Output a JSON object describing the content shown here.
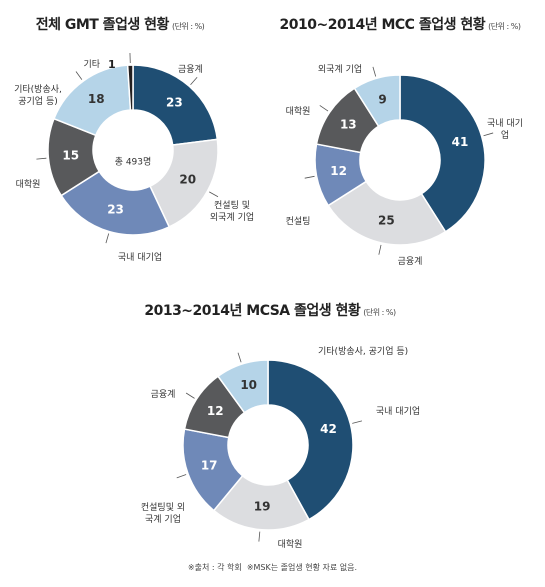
{
  "chart_data": [
    {
      "type": "donut",
      "title": "전체 GMT 졸업생 현황",
      "subtitle": "(단위 : %)",
      "center_label": "총 493명",
      "categories": [
        "금융계",
        "컨설팅 및\n외국계 기업",
        "국내 대기업",
        "대학원",
        "기타(방송사,\n공기업 등)",
        "기타"
      ],
      "values": [
        23,
        20,
        23,
        15,
        18,
        1
      ],
      "colors": [
        "#1f4e73",
        "#dcdde0",
        "#6f89b8",
        "#58595b",
        "#b5d4e8",
        "#231f20"
      ]
    },
    {
      "type": "donut",
      "title": "2010~2014년 MCC 졸업생 현황",
      "subtitle": "(단위 : %)",
      "categories": [
        "국내 대기업",
        "금융계",
        "컨설팅",
        "대학원",
        "외국계 기업"
      ],
      "values": [
        41,
        25,
        12,
        13,
        9
      ],
      "colors": [
        "#1f4e73",
        "#dcdde0",
        "#6f89b8",
        "#58595b",
        "#b5d4e8"
      ]
    },
    {
      "type": "donut",
      "title": "2013~2014년 MCSA 졸업생 현황",
      "subtitle": "(단위 : %)",
      "categories": [
        "국내 대기업",
        "대학원",
        "컨설팅및 외\n국계 기업",
        "금융계",
        "기타(방송사, 공기업 등)"
      ],
      "values": [
        42,
        19,
        17,
        12,
        10
      ],
      "colors": [
        "#1f4e73",
        "#dcdde0",
        "#6f89b8",
        "#58595b",
        "#b5d4e8"
      ]
    }
  ],
  "footnote": "※출처 : 각 학회  ※MSK는 졸업생 현황 자료 없음."
}
